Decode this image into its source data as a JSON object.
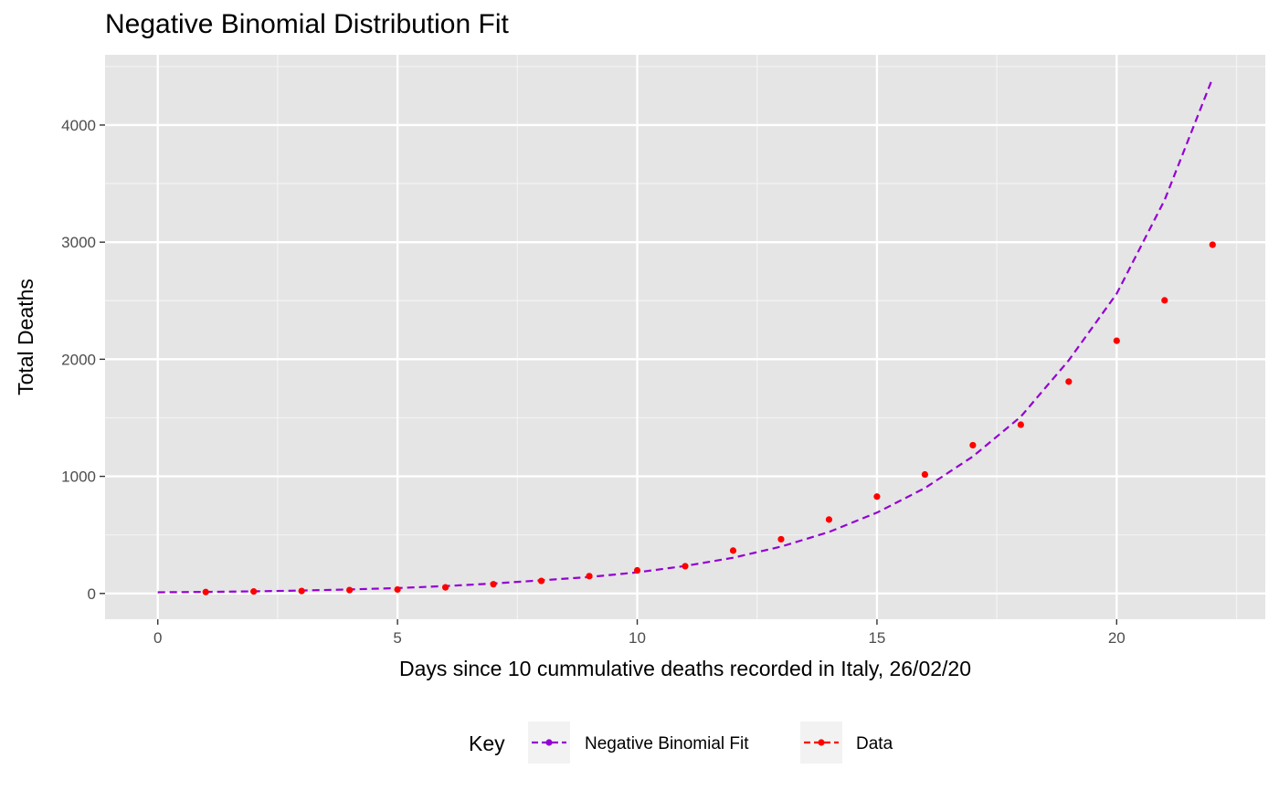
{
  "chart_data": {
    "type": "line",
    "title": "Negative Binomial Distribution Fit",
    "xlabel": "Days since 10 cummulative deaths recorded in Italy, 26/02/20",
    "ylabel": "Total Deaths",
    "xlim": [
      -1.1,
      23.1
    ],
    "ylim": [
      -220,
      4600
    ],
    "x_ticks": [
      0,
      5,
      10,
      15,
      20
    ],
    "y_ticks": [
      0,
      1000,
      2000,
      3000,
      4000
    ],
    "grid": true,
    "legend_position": "bottom",
    "legend_title": "Key",
    "series": [
      {
        "name": "Negative Binomial Fit",
        "style": "dashed-line",
        "color": "#9400D3",
        "x": [
          0,
          1,
          2,
          3,
          4,
          5,
          6,
          7,
          8,
          9,
          10,
          11,
          12,
          13,
          14,
          15,
          16,
          17,
          18,
          19,
          20,
          21,
          22
        ],
        "y": [
          10,
          13,
          18,
          25,
          34,
          46,
          63,
          85,
          112,
          140,
          180,
          235,
          305,
          400,
          525,
          690,
          900,
          1170,
          1510,
          1990,
          2560,
          3360,
          4400
        ]
      },
      {
        "name": "Data",
        "style": "points",
        "color": "#FF0000",
        "x": [
          1,
          2,
          3,
          4,
          5,
          6,
          7,
          8,
          9,
          10,
          11,
          12,
          13,
          14,
          15,
          16,
          17,
          18,
          19,
          20,
          21,
          22
        ],
        "y": [
          12,
          17,
          21,
          29,
          34,
          52,
          79,
          107,
          148,
          197,
          233,
          366,
          463,
          631,
          827,
          1016,
          1266,
          1441,
          1809,
          2158,
          2503,
          2978
        ]
      }
    ]
  }
}
